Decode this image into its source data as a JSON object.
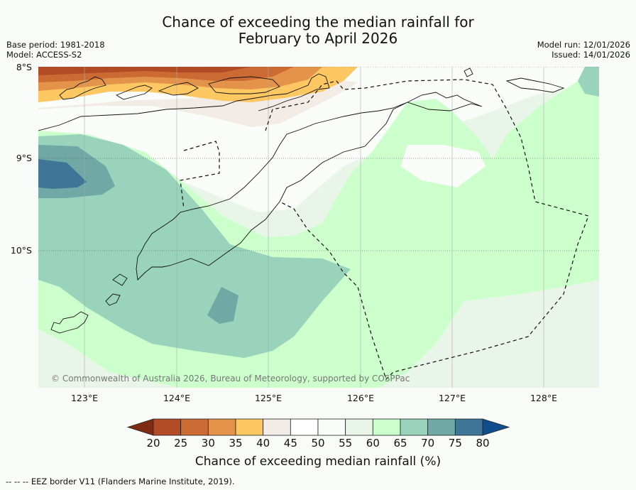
{
  "header": {
    "title_line1": "Chance of exceeding the median rainfall for",
    "title_line2": "February to April 2026",
    "base_period": "Base period: 1981-2018",
    "model": "Model: ACCESS-S2",
    "model_run": "Model run: 12/01/2026",
    "issued": "Issued: 14/01/2026"
  },
  "map": {
    "lat_labels": [
      "8°S",
      "9°S",
      "10°S"
    ],
    "lon_labels": [
      "123°E",
      "124°E",
      "125°E",
      "126°E",
      "127°E",
      "128°E"
    ],
    "copyright": "© Commonwealth of Australia 2026, Bureau of Meteorology, supported by COSPPac"
  },
  "legend": {
    "ticks": [
      "20",
      "25",
      "30",
      "35",
      "40",
      "45",
      "50",
      "55",
      "60",
      "65",
      "70",
      "75",
      "80"
    ],
    "colors": [
      "#7f2a12",
      "#b24b25",
      "#cc6a33",
      "#e3944a",
      "#fdc762",
      "#f2ebe6",
      "#ffffff",
      "#f9fcf9",
      "#e8f5e8",
      "#ccffcc",
      "#9ad3bb",
      "#6fa8a5",
      "#3f7596",
      "#0f4d8c"
    ],
    "label": "Chance of exceeding median rainfall (%)"
  },
  "footer": {
    "eez_marker": "-- -- --",
    "text": "EEZ border V11 (Flanders Marine Institute, 2019)."
  }
}
